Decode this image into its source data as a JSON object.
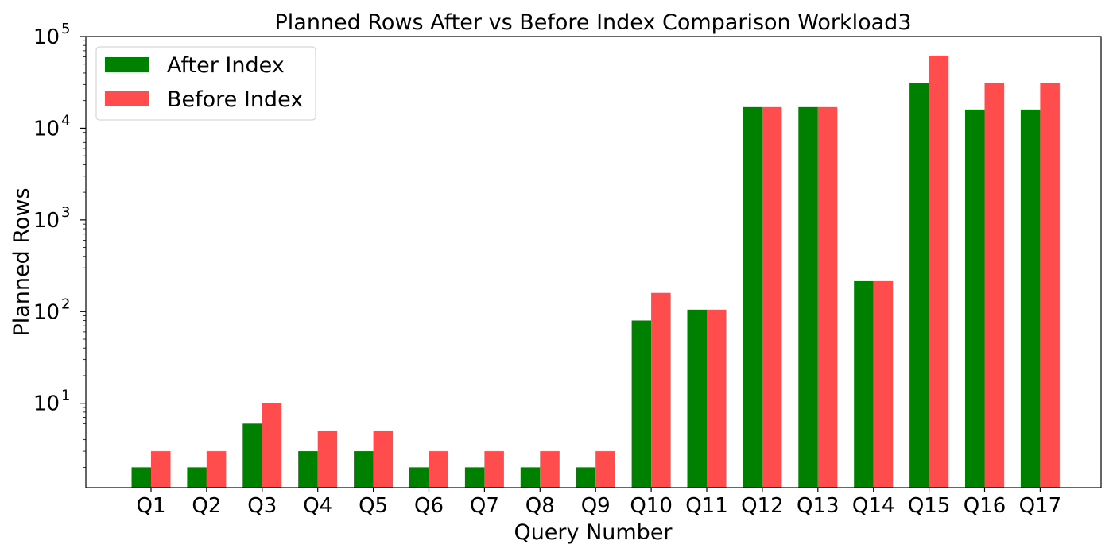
{
  "chart_data": {
    "type": "bar",
    "title": "Planned Rows After vs Before Index Comparison Workload3",
    "xlabel": "Query Number",
    "ylabel": "Planned Rows",
    "yscale": "log",
    "ylim": [
      1.2,
      100000
    ],
    "yticks": [
      {
        "value": 10,
        "base": "10",
        "exp": "1"
      },
      {
        "value": 100,
        "base": "10",
        "exp": "2"
      },
      {
        "value": 1000,
        "base": "10",
        "exp": "3"
      },
      {
        "value": 10000,
        "base": "10",
        "exp": "4"
      },
      {
        "value": 100000,
        "base": "10",
        "exp": "5"
      }
    ],
    "categories": [
      "Q1",
      "Q2",
      "Q3",
      "Q4",
      "Q5",
      "Q6",
      "Q7",
      "Q8",
      "Q9",
      "Q10",
      "Q11",
      "Q12",
      "Q13",
      "Q14",
      "Q15",
      "Q16",
      "Q17"
    ],
    "series": [
      {
        "name": "After Index",
        "color": "#008000",
        "values": [
          2,
          2,
          6,
          3,
          3,
          2,
          2,
          2,
          2,
          80,
          105,
          17000,
          17000,
          215,
          31000,
          16000,
          16000
        ]
      },
      {
        "name": "Before Index",
        "color": "#ff4d4d",
        "values": [
          3,
          3,
          10,
          5,
          5,
          3,
          3,
          3,
          3,
          160,
          105,
          17000,
          17000,
          215,
          62000,
          31000,
          31000
        ]
      }
    ],
    "legend_position": "top-left",
    "grid": false
  }
}
